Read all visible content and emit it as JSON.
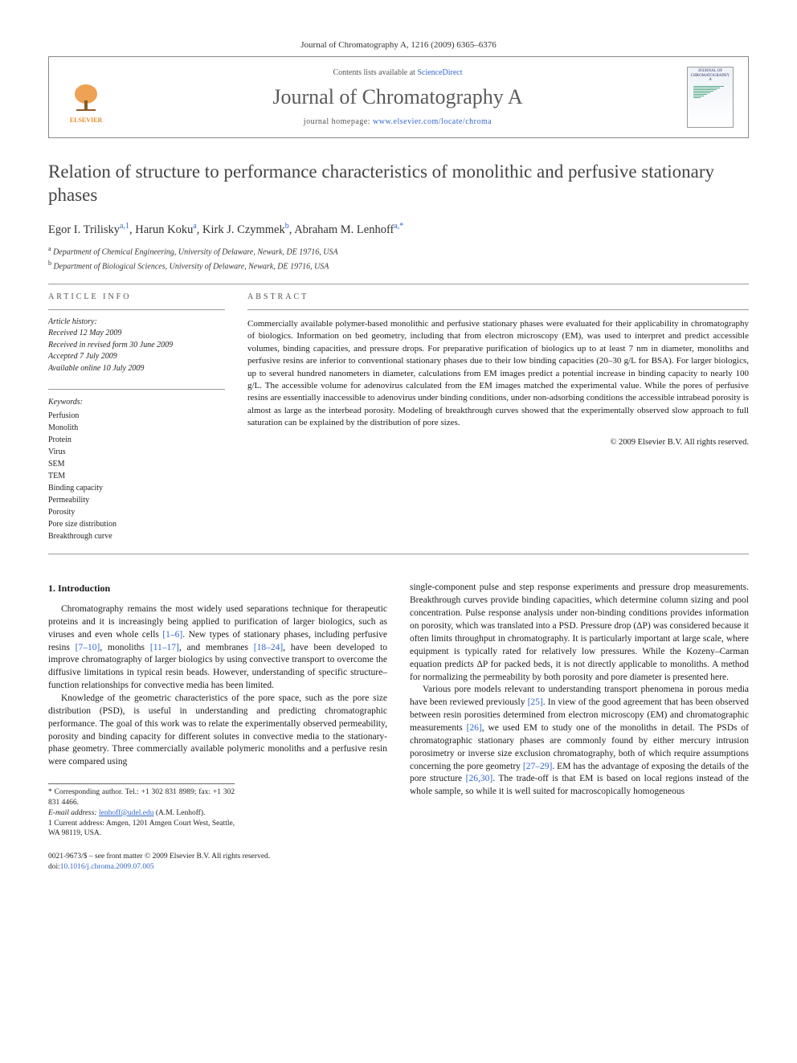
{
  "journal_ref": "Journal of Chromatography A, 1216 (2009) 6365–6376",
  "header": {
    "contents_prefix": "Contents lists available at ",
    "contents_link": "ScienceDirect",
    "journal_name": "Journal of Chromatography A",
    "homepage_prefix": "journal homepage: ",
    "homepage_link": "www.elsevier.com/locate/chroma",
    "publisher_logo_label": "ELSEVIER",
    "cover_title": "JOURNAL OF CHROMATOGRAPHY A"
  },
  "title": "Relation of structure to performance characteristics of monolithic and perfusive stationary phases",
  "authors_html": "Egor I. Trilisky<sup>a,1</sup>, Harun Koku<sup>a</sup>, Kirk J. Czymmek<sup>b</sup>, Abraham M. Lenhoff<sup>a,*</sup>",
  "affiliations": [
    "a Department of Chemical Engineering, University of Delaware, Newark, DE 19716, USA",
    "b Department of Biological Sciences, University of Delaware, Newark, DE 19716, USA"
  ],
  "info": {
    "label": "ARTICLE INFO",
    "history_label": "Article history:",
    "history": [
      "Received 12 May 2009",
      "Received in revised form 30 June 2009",
      "Accepted 7 July 2009",
      "Available online 10 July 2009"
    ],
    "keywords_label": "Keywords:",
    "keywords": [
      "Perfusion",
      "Monolith",
      "Protein",
      "Virus",
      "SEM",
      "TEM",
      "Binding capacity",
      "Permeability",
      "Porosity",
      "Pore size distribution",
      "Breakthrough curve"
    ]
  },
  "abstract": {
    "label": "ABSTRACT",
    "text": "Commercially available polymer-based monolithic and perfusive stationary phases were evaluated for their applicability in chromatography of biologics. Information on bed geometry, including that from electron microscopy (EM), was used to interpret and predict accessible volumes, binding capacities, and pressure drops. For preparative purification of biologics up to at least 7 nm in diameter, monoliths and perfusive resins are inferior to conventional stationary phases due to their low binding capacities (20–30 g/L for BSA). For larger biologics, up to several hundred nanometers in diameter, calculations from EM images predict a potential increase in binding capacity to nearly 100 g/L. The accessible volume for adenovirus calculated from the EM images matched the experimental value. While the pores of perfusive resins are essentially inaccessible to adenovirus under binding conditions, under non-adsorbing conditions the accessible intrabead porosity is almost as large as the interbead porosity. Modeling of breakthrough curves showed that the experimentally observed slow approach to full saturation can be explained by the distribution of pore sizes.",
    "copyright": "© 2009 Elsevier B.V. All rights reserved."
  },
  "body": {
    "section_heading": "1. Introduction",
    "col1_p1": "Chromatography remains the most widely used separations technique for therapeutic proteins and it is increasingly being applied to purification of larger biologics, such as viruses and even whole cells [1–6]. New types of stationary phases, including perfusive resins [7–10], monoliths [11–17], and membranes [18–24], have been developed to improve chromatography of larger biologics by using convective transport to overcome the diffusive limitations in typical resin beads. However, understanding of specific structure–function relationships for convective media has been limited.",
    "col1_p2": "Knowledge of the geometric characteristics of the pore space, such as the pore size distribution (PSD), is useful in understanding and predicting chromatographic performance. The goal of this work was to relate the experimentally observed permeability, porosity and binding capacity for different solutes in convective media to the stationary-phase geometry. Three commercially available polymeric monoliths and a perfusive resin were compared using",
    "col2_p1": "single-component pulse and step response experiments and pressure drop measurements. Breakthrough curves provide binding capacities, which determine column sizing and pool concentration. Pulse response analysis under non-binding conditions provides information on porosity, which was translated into a PSD. Pressure drop (ΔP) was considered because it often limits throughput in chromatography. It is particularly important at large scale, where equipment is typically rated for relatively low pressures. While the Kozeny–Carman equation predicts ΔP for packed beds, it is not directly applicable to monoliths. A method for normalizing the permeability by both porosity and pore diameter is presented here.",
    "col2_p2": "Various pore models relevant to understanding transport phenomena in porous media have been reviewed previously [25]. In view of the good agreement that has been observed between resin porosities determined from electron microscopy (EM) and chromatographic measurements [26], we used EM to study one of the monoliths in detail. The PSDs of chromatographic stationary phases are commonly found by either mercury intrusion porosimetry or inverse size exclusion chromatography, both of which require assumptions concerning the pore geometry [27–29]. EM has the advantage of exposing the details of the pore structure [26,30]. The trade-off is that EM is based on local regions instead of the whole sample, so while it is well suited for macroscopically homogeneous",
    "refs": {
      "r1_6": "[1–6]",
      "r7_10": "[7–10]",
      "r11_17": "[11–17]",
      "r18_24": "[18–24]",
      "r25": "[25]",
      "r26": "[26]",
      "r27_29": "[27–29]",
      "r26_30": "[26,30]"
    }
  },
  "footnotes": {
    "corr": "* Corresponding author. Tel.: +1 302 831 8989; fax: +1 302 831 4466.",
    "email_label": "E-mail address: ",
    "email": "lenhoff@udel.edu",
    "email_suffix": " (A.M. Lenhoff).",
    "note1": "1 Current address: Amgen, 1201 Amgen Court West, Seattle, WA 98119, USA."
  },
  "footer": {
    "line1": "0021-9673/$ – see front matter © 2009 Elsevier B.V. All rights reserved.",
    "doi_label": "doi:",
    "doi": "10.1016/j.chroma.2009.07.005"
  },
  "colors": {
    "link": "#3366cc",
    "elsevier_orange": "#e98b2a",
    "rule": "#999999",
    "text": "#1a1a1a"
  }
}
